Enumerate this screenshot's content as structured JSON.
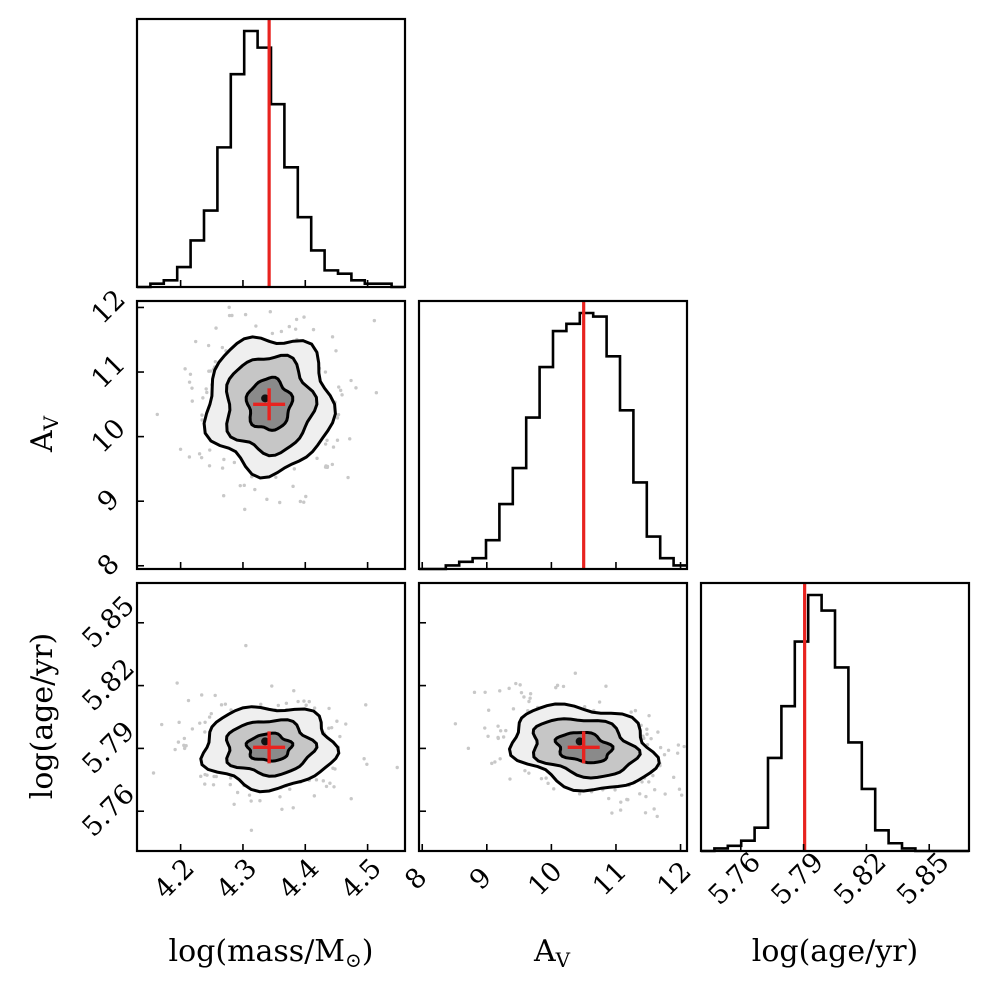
{
  "chart_data": {
    "type": "corner",
    "parameters": [
      {
        "key": "mass",
        "label_main": "log(mass/M",
        "label_sub": "⊙",
        "label_close": ")",
        "range": [
          4.13,
          4.56
        ],
        "ticks": [
          4.2,
          4.3,
          4.4,
          4.5
        ],
        "tick_labels": [
          "4.2",
          "4.3",
          "4.4",
          "4.5"
        ],
        "truth": 4.342
      },
      {
        "key": "av",
        "label_main": "A",
        "label_sub": "V",
        "label_close": "",
        "range": [
          7.95,
          12.1
        ],
        "ticks": [
          8,
          9,
          10,
          11,
          12
        ],
        "tick_labels": [
          "8",
          "9",
          "10",
          "11",
          "12"
        ],
        "truth": 10.5
      },
      {
        "key": "age",
        "label_main": "log(age/yr)",
        "label_sub": "",
        "label_close": "",
        "range": [
          5.741,
          5.869
        ],
        "ticks": [
          5.76,
          5.79,
          5.82,
          5.85
        ],
        "tick_labels": [
          "5.76",
          "5.79",
          "5.82",
          "5.85"
        ],
        "truth": 5.7905
      }
    ],
    "histograms": [
      {
        "param": "mass",
        "bin_start": 4.13,
        "bin_width": 0.0215,
        "counts": [
          0,
          1,
          2,
          6,
          14,
          23,
          42,
          64,
          77,
          72,
          55,
          36,
          21,
          11,
          5,
          4,
          2,
          1,
          1,
          0
        ]
      },
      {
        "param": "av",
        "bin_start": 7.95,
        "bin_width": 0.2075,
        "counts": [
          0,
          0,
          1,
          2,
          3,
          8,
          18,
          28,
          42,
          56,
          66,
          68,
          71,
          70,
          59,
          44,
          24,
          9,
          3,
          1
        ]
      },
      {
        "param": "age",
        "bin_start": 5.741,
        "bin_width": 0.0064,
        "counts": [
          0,
          1,
          2,
          4,
          9,
          36,
          56,
          81,
          99,
          93,
          71,
          42,
          24,
          8,
          3,
          1,
          0,
          0,
          0,
          0
        ]
      }
    ],
    "joint_panels": [
      {
        "x": "mass",
        "y": "av",
        "center": [
          4.342,
          10.5
        ],
        "levels": [
          {
            "name": "outer",
            "rx": 0.1,
            "ry": 1.05
          },
          {
            "name": "middle",
            "rx": 0.07,
            "ry": 0.75
          },
          {
            "name": "inner",
            "rx": 0.035,
            "ry": 0.4
          }
        ]
      },
      {
        "x": "mass",
        "y": "age",
        "center": [
          4.342,
          5.7905
        ],
        "levels": [
          {
            "name": "outer",
            "rx": 0.105,
            "ry": 0.0195
          },
          {
            "name": "middle",
            "rx": 0.07,
            "ry": 0.013
          },
          {
            "name": "inner",
            "rx": 0.035,
            "ry": 0.0065
          }
        ]
      },
      {
        "x": "av",
        "y": "age",
        "center": [
          10.5,
          5.7905
        ],
        "levels": [
          {
            "name": "outer",
            "rx": 1.1,
            "ry": 0.0195
          },
          {
            "name": "middle",
            "rx": 0.8,
            "ry": 0.0135
          },
          {
            "name": "inner",
            "rx": 0.42,
            "ry": 0.007
          }
        ]
      }
    ],
    "truth_color": "#e8231f",
    "contour_color": "#000000"
  }
}
